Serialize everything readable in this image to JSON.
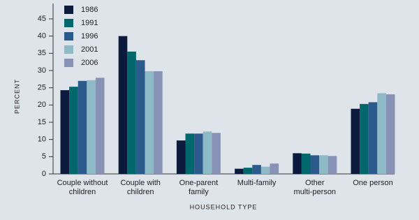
{
  "chart_data": {
    "type": "bar",
    "x_label": "HOUSEHOLD TYPE",
    "y_label": "PERCENT",
    "categories": [
      "Couple without\nchildren",
      "Couple with\nchildren",
      "One-parent\nfamily",
      "Multi-family",
      "Other\nmulti-person",
      "One person"
    ],
    "series": [
      {
        "name": "1986",
        "color": "#0c1b3d",
        "values": [
          24.3,
          40,
          9.7,
          1.5,
          6.0,
          18.9
        ]
      },
      {
        "name": "1991",
        "color": "#00676d",
        "values": [
          25.3,
          35.5,
          11.7,
          1.8,
          5.9,
          20.3
        ]
      },
      {
        "name": "1996",
        "color": "#2d5a8c",
        "values": [
          27,
          33,
          11.7,
          2.6,
          5.4,
          20.8
        ]
      },
      {
        "name": "2001",
        "color": "#8dbac6",
        "values": [
          27.2,
          29.8,
          12.3,
          2.1,
          5.4,
          23.4
        ]
      },
      {
        "name": "2006",
        "color": "#8892b6",
        "values": [
          27.9,
          29.8,
          11.9,
          3.0,
          5.2,
          23.1
        ]
      }
    ],
    "ylim": [
      0,
      45
    ],
    "yticks": [
      0,
      5,
      10,
      15,
      20,
      25,
      30,
      35,
      40,
      45
    ],
    "legend": "top-left"
  }
}
